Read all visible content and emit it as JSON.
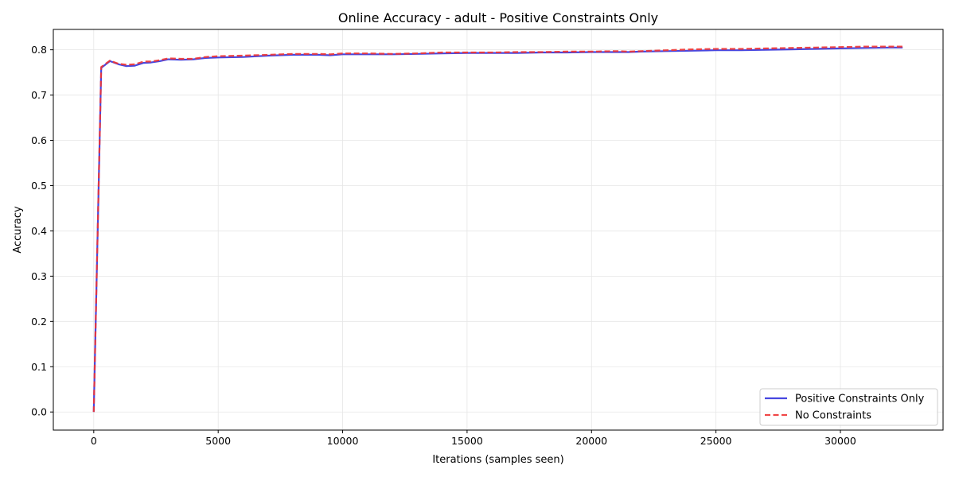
{
  "chart_data": {
    "type": "line",
    "title": "Online Accuracy - adult - Positive Constraints Only",
    "xlabel": "Iterations (samples seen)",
    "ylabel": "Accuracy",
    "xlim": [
      -1625,
      34125
    ],
    "ylim": [
      -0.04,
      0.845
    ],
    "xticks": [
      0,
      5000,
      10000,
      15000,
      20000,
      25000,
      30000
    ],
    "yticks": [
      0.0,
      0.1,
      0.2,
      0.3,
      0.4,
      0.5,
      0.6,
      0.7,
      0.8
    ],
    "grid": true,
    "legend_position": "bottom-right",
    "series": [
      {
        "name": "Positive Constraints Only",
        "color": "#3333dd",
        "style": "solid",
        "x": [
          0,
          300,
          650,
          1000,
          1300,
          1650,
          2000,
          2300,
          2650,
          3000,
          3500,
          4000,
          4500,
          5000,
          6000,
          7000,
          8000,
          9000,
          9500,
          10000,
          11000,
          12000,
          13000,
          14000,
          15000,
          16000,
          17000,
          18000,
          19000,
          20000,
          21000,
          21500,
          22000,
          23000,
          24000,
          25000,
          26000,
          27000,
          28000,
          29000,
          30000,
          31000,
          32000,
          32500
        ],
        "y": [
          0.0,
          0.76,
          0.775,
          0.768,
          0.764,
          0.765,
          0.771,
          0.772,
          0.775,
          0.779,
          0.778,
          0.779,
          0.782,
          0.783,
          0.784,
          0.787,
          0.789,
          0.789,
          0.788,
          0.79,
          0.79,
          0.79,
          0.791,
          0.792,
          0.793,
          0.793,
          0.793,
          0.794,
          0.794,
          0.795,
          0.795,
          0.795,
          0.796,
          0.797,
          0.798,
          0.799,
          0.799,
          0.8,
          0.801,
          0.802,
          0.803,
          0.804,
          0.805,
          0.805
        ]
      },
      {
        "name": "No Constraints",
        "color": "#ee3333",
        "style": "dashed",
        "x": [
          0,
          300,
          650,
          1000,
          1300,
          1650,
          2000,
          2300,
          2650,
          3000,
          3500,
          4000,
          4500,
          5000,
          6000,
          7000,
          8000,
          9000,
          9500,
          10000,
          11000,
          12000,
          13000,
          14000,
          15000,
          16000,
          17000,
          18000,
          19000,
          20000,
          21000,
          21500,
          22000,
          23000,
          24000,
          25000,
          26000,
          27000,
          28000,
          29000,
          30000,
          31000,
          32000,
          32500
        ],
        "y": [
          0.0,
          0.762,
          0.776,
          0.769,
          0.767,
          0.768,
          0.774,
          0.774,
          0.777,
          0.781,
          0.78,
          0.78,
          0.784,
          0.786,
          0.787,
          0.789,
          0.791,
          0.791,
          0.79,
          0.792,
          0.792,
          0.791,
          0.792,
          0.794,
          0.794,
          0.794,
          0.795,
          0.795,
          0.796,
          0.796,
          0.797,
          0.796,
          0.797,
          0.799,
          0.801,
          0.802,
          0.802,
          0.803,
          0.804,
          0.805,
          0.806,
          0.807,
          0.807,
          0.807
        ]
      }
    ]
  }
}
